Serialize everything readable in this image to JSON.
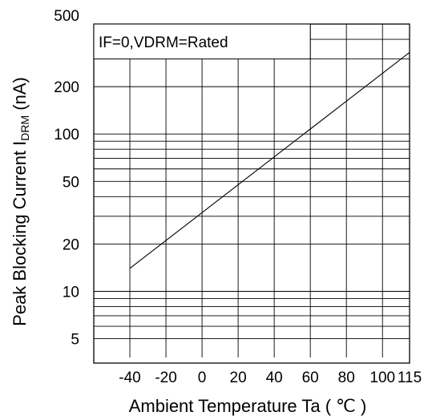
{
  "chart_data": {
    "type": "line",
    "title": "",
    "annotation": "IF=0,VDRM=Rated",
    "xlabel": "Ambient Temperature Ta ( ℃ )",
    "ylabel_main": "Peak Blocking Current I",
    "ylabel_sub": "DRM",
    "ylabel_unit": " (nA)",
    "x_scale": "linear",
    "y_scale": "log",
    "xlim": [
      -60,
      115
    ],
    "ylim": [
      3.5,
      500
    ],
    "x_ticks": [
      -40,
      -20,
      0,
      20,
      40,
      60,
      80,
      100,
      115
    ],
    "x_tick_labels": [
      "-40",
      "-20",
      "0",
      "20",
      "40",
      "60",
      "80",
      "100",
      "115"
    ],
    "y_ticks": [
      5,
      10,
      20,
      50,
      100,
      200,
      500
    ],
    "y_tick_labels": [
      "5",
      "10",
      "20",
      "50",
      "100",
      "200",
      "500"
    ],
    "grid": true,
    "series": [
      {
        "x": [
          -40,
          115
        ],
        "y": [
          14,
          330
        ]
      }
    ]
  }
}
